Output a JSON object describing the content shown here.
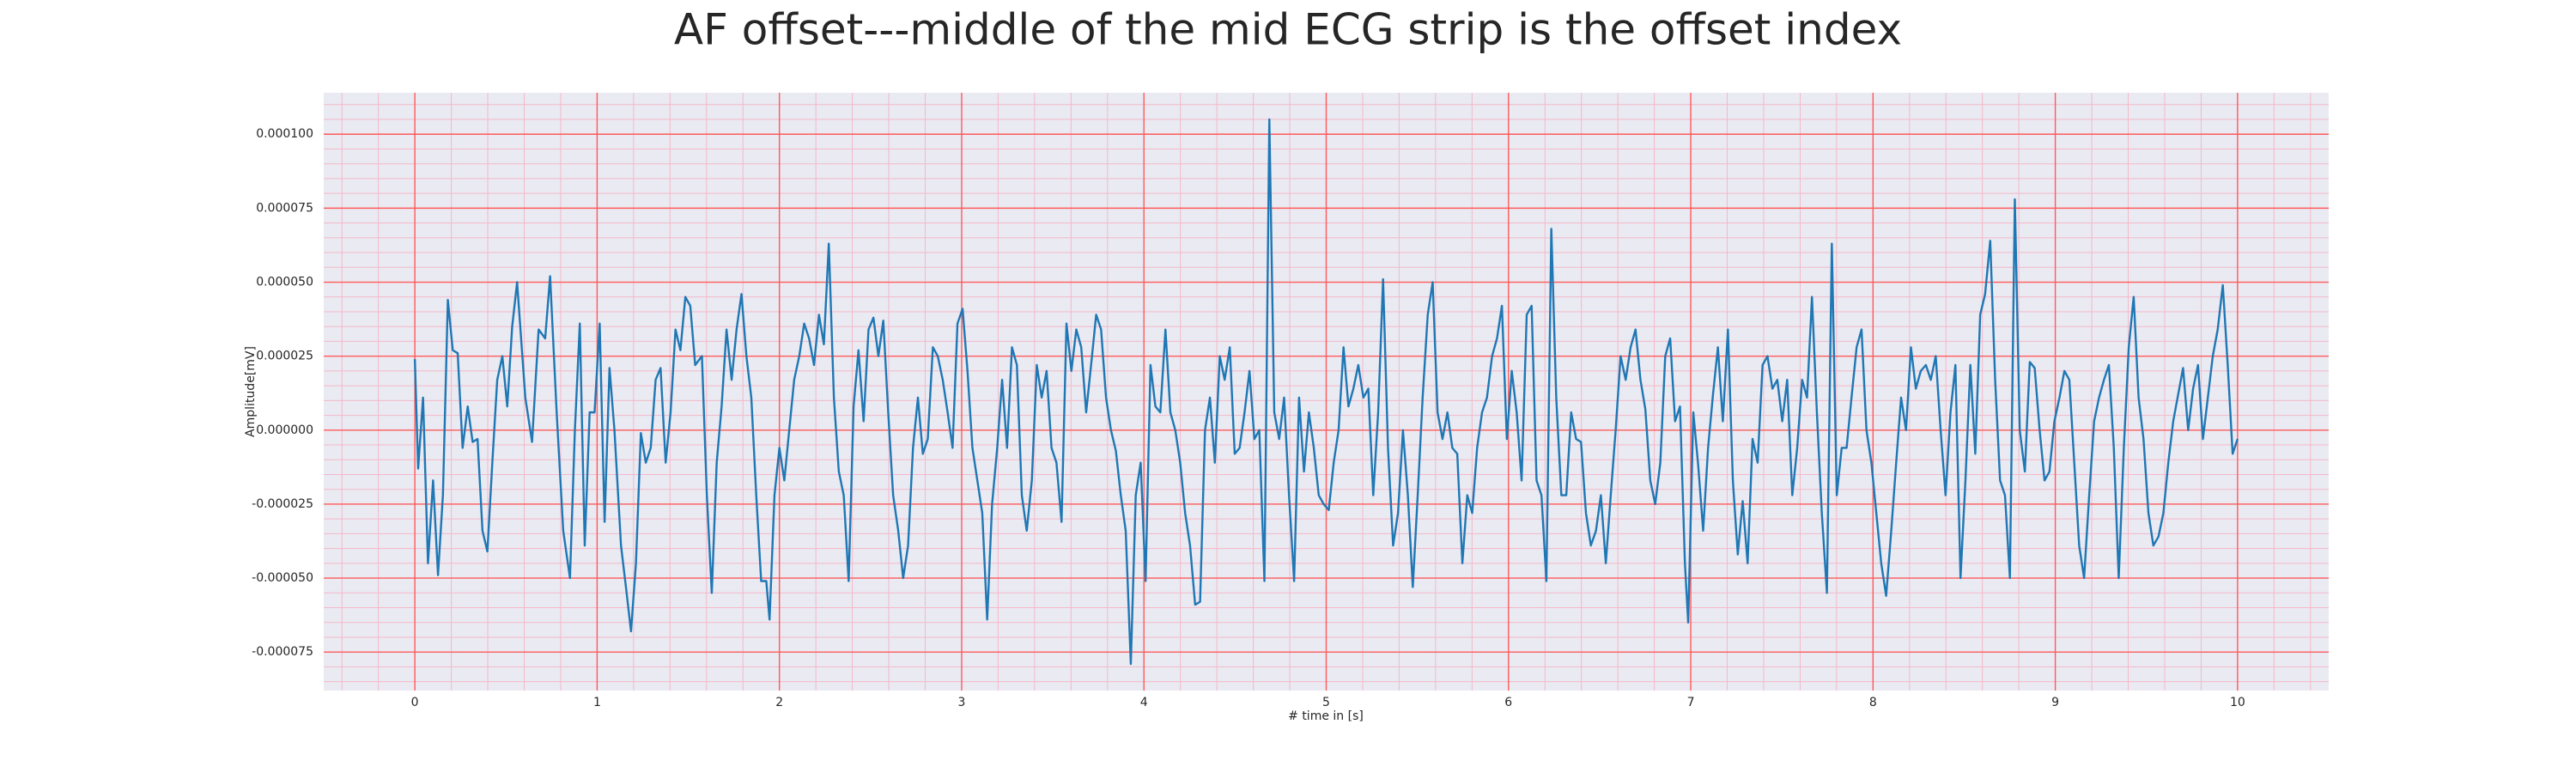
{
  "chart_data": {
    "type": "line",
    "title": "AF offset---middle of the mid ECG strip is the offset index",
    "xlabel": "# time in [s]",
    "ylabel": "Amplitude[mV]",
    "color": "#1f77b4",
    "background": "#eaeaf2",
    "grid_color": "#ff5a5a",
    "minor_grid_color": "#f4b8c8",
    "grid": true,
    "minor_grid": true,
    "xlim": [
      -0.5,
      10.5
    ],
    "ylim": [
      -8.8e-05,
      0.000114
    ],
    "xticks": [
      0,
      1,
      2,
      3,
      4,
      5,
      6,
      7,
      8,
      9,
      10
    ],
    "yticks": [
      {
        "value": -7.5e-05,
        "label": "-0.000075"
      },
      {
        "value": -5e-05,
        "label": "-0.000050"
      },
      {
        "value": -2.5e-05,
        "label": "-0.000025"
      },
      {
        "value": 0,
        "label": "0.000000"
      },
      {
        "value": 2.5e-05,
        "label": "0.000025"
      },
      {
        "value": 5e-05,
        "label": "0.000050"
      },
      {
        "value": 7.5e-05,
        "label": "0.000075"
      },
      {
        "value": 0.0001,
        "label": "0.000100"
      }
    ],
    "x": [
      0.0,
      0.018,
      0.045,
      0.072,
      0.1,
      0.127,
      0.154,
      0.181,
      0.208,
      0.235,
      0.262,
      0.29,
      0.317,
      0.344,
      0.371,
      0.398,
      0.425,
      0.452,
      0.48,
      0.507,
      0.534,
      0.561,
      0.606,
      0.643,
      0.679,
      0.715,
      0.742,
      0.778,
      0.814,
      0.851,
      0.878,
      0.905,
      0.932,
      0.959,
      0.986,
      1.014,
      1.041,
      1.068,
      1.095,
      1.131,
      1.158,
      1.186,
      1.213,
      1.24,
      1.267,
      1.294,
      1.321,
      1.348,
      1.376,
      1.403,
      1.43,
      1.457,
      1.484,
      1.511,
      1.538,
      1.575,
      1.602,
      1.629,
      1.656,
      1.683,
      1.71,
      1.738,
      1.765,
      1.792,
      1.819,
      1.846,
      1.873,
      1.9,
      1.928,
      1.946,
      1.973,
      2.0,
      2.027,
      2.054,
      2.081,
      2.109,
      2.136,
      2.163,
      2.19,
      2.217,
      2.244,
      2.271,
      2.299,
      2.326,
      2.353,
      2.38,
      2.407,
      2.434,
      2.462,
      2.489,
      2.516,
      2.543,
      2.57,
      2.597,
      2.624,
      2.652,
      2.679,
      2.706,
      2.733,
      2.76,
      2.787,
      2.814,
      2.842,
      2.869,
      2.896,
      2.923,
      2.95,
      2.977,
      3.005,
      3.032,
      3.059,
      3.086,
      3.113,
      3.14,
      3.167,
      3.195,
      3.222,
      3.249,
      3.276,
      3.303,
      3.33,
      3.357,
      3.385,
      3.412,
      3.439,
      3.466,
      3.493,
      3.52,
      3.548,
      3.575,
      3.602,
      3.629,
      3.656,
      3.683,
      3.71,
      3.738,
      3.765,
      3.792,
      3.819,
      3.846,
      3.873,
      3.9,
      3.928,
      3.955,
      3.982,
      4.009,
      4.036,
      4.063,
      4.09,
      4.118,
      4.145,
      4.172,
      4.199,
      4.226,
      4.253,
      4.281,
      4.308,
      4.335,
      4.362,
      4.389,
      4.416,
      4.443,
      4.471,
      4.498,
      4.525,
      4.552,
      4.579,
      4.606,
      4.633,
      4.661,
      4.688,
      4.715,
      4.742,
      4.769,
      4.796,
      4.824,
      4.851,
      4.878,
      4.905,
      4.932,
      4.959,
      4.986,
      5.014,
      5.041,
      5.068,
      5.095,
      5.122,
      5.149,
      5.176,
      5.204,
      5.231,
      5.258,
      5.285,
      5.312,
      5.339,
      5.367,
      5.394,
      5.421,
      5.448,
      5.475,
      5.502,
      5.529,
      5.557,
      5.584,
      5.611,
      5.638,
      5.665,
      5.692,
      5.719,
      5.747,
      5.774,
      5.801,
      5.828,
      5.855,
      5.882,
      5.91,
      5.937,
      5.964,
      5.991,
      6.018,
      6.045,
      6.072,
      6.1,
      6.127,
      6.154,
      6.181,
      6.208,
      6.235,
      6.262,
      6.29,
      6.317,
      6.344,
      6.371,
      6.398,
      6.425,
      6.452,
      6.48,
      6.507,
      6.534,
      6.561,
      6.588,
      6.615,
      6.643,
      6.67,
      6.697,
      6.724,
      6.751,
      6.778,
      6.805,
      6.833,
      6.86,
      6.887,
      6.914,
      6.941,
      6.968,
      6.986,
      7.014,
      7.041,
      7.068,
      7.095,
      7.122,
      7.149,
      7.176,
      7.204,
      7.231,
      7.258,
      7.285,
      7.312,
      7.339,
      7.367,
      7.394,
      7.421,
      7.448,
      7.475,
      7.502,
      7.529,
      7.557,
      7.584,
      7.611,
      7.638,
      7.665,
      7.692,
      7.719,
      7.747,
      7.774,
      7.801,
      7.828,
      7.855,
      7.882,
      7.91,
      7.937,
      7.964,
      7.991,
      8.018,
      8.045,
      8.072,
      8.1,
      8.127,
      8.154,
      8.181,
      8.208,
      8.235,
      8.262,
      8.29,
      8.317,
      8.344,
      8.371,
      8.398,
      8.425,
      8.452,
      8.48,
      8.507,
      8.534,
      8.561,
      8.588,
      8.615,
      8.643,
      8.67,
      8.697,
      8.724,
      8.751,
      8.778,
      8.805,
      8.833,
      8.86,
      8.887,
      8.914,
      8.941,
      8.968,
      8.995,
      9.023,
      9.05,
      9.077,
      9.104,
      9.131,
      9.158,
      9.186,
      9.213,
      9.24,
      9.267,
      9.294,
      9.321,
      9.348,
      9.376,
      9.403,
      9.43,
      9.457,
      9.484,
      9.511,
      9.538,
      9.566,
      9.593,
      9.62,
      9.647,
      9.674,
      9.701,
      9.729,
      9.756,
      9.783,
      9.81,
      9.837,
      9.864,
      9.891,
      9.919,
      9.946,
      9.973,
      10.0
    ],
    "values": [
      2.4e-05,
      -1.3e-05,
      1.1e-05,
      -4.5e-05,
      -1.7e-05,
      -4.9e-05,
      -2.2e-05,
      4.4e-05,
      2.7e-05,
      2.6e-05,
      -6e-06,
      8e-06,
      -4e-06,
      -3e-06,
      -3.4e-05,
      -4.1e-05,
      -1.1e-05,
      1.7e-05,
      2.5e-05,
      8e-06,
      3.5e-05,
      5e-05,
      1.1e-05,
      -4e-06,
      3.4e-05,
      3.1e-05,
      5.2e-05,
      6e-06,
      -3.4e-05,
      -5e-05,
      0,
      3.6e-05,
      -3.9e-05,
      6e-06,
      6e-06,
      3.6e-05,
      -3.1e-05,
      2.1e-05,
      0,
      -3.9e-05,
      -5.3e-05,
      -6.8e-05,
      -4.5e-05,
      -1e-06,
      -1.1e-05,
      -6e-06,
      1.7e-05,
      2.1e-05,
      -1.1e-05,
      6e-06,
      3.4e-05,
      2.7e-05,
      4.5e-05,
      4.2e-05,
      2.2e-05,
      2.5e-05,
      -2.2e-05,
      -5.5e-05,
      -1.1e-05,
      8e-06,
      3.4e-05,
      1.7e-05,
      3.4e-05,
      4.6e-05,
      2.5e-05,
      1.1e-05,
      -2.2e-05,
      -5.1e-05,
      -5.1e-05,
      -6.4e-05,
      -2.2e-05,
      -6e-06,
      -1.7e-05,
      0,
      1.7e-05,
      2.5e-05,
      3.6e-05,
      3.1e-05,
      2.2e-05,
      3.9e-05,
      2.9e-05,
      6.3e-05,
      1.1e-05,
      -1.4e-05,
      -2.2e-05,
      -5.1e-05,
      8e-06,
      2.7e-05,
      3e-06,
      3.4e-05,
      3.8e-05,
      2.5e-05,
      3.7e-05,
      6e-06,
      -2.2e-05,
      -3.4e-05,
      -5e-05,
      -3.9e-05,
      -6e-06,
      1.1e-05,
      -8e-06,
      -3e-06,
      2.8e-05,
      2.5e-05,
      1.7e-05,
      6e-06,
      -6e-06,
      3.6e-05,
      4.1e-05,
      2e-05,
      -6e-06,
      -1.7e-05,
      -2.8e-05,
      -6.4e-05,
      -2.5e-05,
      -6e-06,
      1.7e-05,
      -6e-06,
      2.8e-05,
      2.2e-05,
      -2.2e-05,
      -3.4e-05,
      -1.7e-05,
      2.2e-05,
      1.1e-05,
      2e-05,
      -6e-06,
      -1.1e-05,
      -3.1e-05,
      3.6e-05,
      2e-05,
      3.4e-05,
      2.8e-05,
      6e-06,
      2.2e-05,
      3.9e-05,
      3.4e-05,
      1.1e-05,
      0,
      -7e-06,
      -2.2e-05,
      -3.4e-05,
      -7.9e-05,
      -2.2e-05,
      -1.1e-05,
      -5.1e-05,
      2.2e-05,
      8e-06,
      6e-06,
      3.4e-05,
      6e-06,
      0,
      -1.1e-05,
      -2.8e-05,
      -3.9e-05,
      -5.9e-05,
      -5.8e-05,
      0,
      1.1e-05,
      -1.1e-05,
      2.5e-05,
      1.7e-05,
      2.8e-05,
      -8e-06,
      -6e-06,
      6e-06,
      2e-05,
      -3e-06,
      0,
      -5.1e-05,
      0.000105,
      6e-06,
      -3e-06,
      1.1e-05,
      -2.2e-05,
      -5.1e-05,
      1.1e-05,
      -1.4e-05,
      6e-06,
      -6e-06,
      -2.2e-05,
      -2.5e-05,
      -2.7e-05,
      -1.1e-05,
      0,
      2.8e-05,
      8e-06,
      1.4e-05,
      2.2e-05,
      1.1e-05,
      1.4e-05,
      -2.2e-05,
      6e-06,
      5.1e-05,
      -6e-06,
      -3.9e-05,
      -2.8e-05,
      0,
      -2.2e-05,
      -5.3e-05,
      -2.2e-05,
      1.1e-05,
      3.9e-05,
      5e-05,
      6e-06,
      -3e-06,
      6e-06,
      -6e-06,
      -8e-06,
      -4.5e-05,
      -2.2e-05,
      -2.8e-05,
      -6e-06,
      6e-06,
      1.1e-05,
      2.5e-05,
      3.1e-05,
      4.2e-05,
      -3e-06,
      2e-05,
      6e-06,
      -1.7e-05,
      3.9e-05,
      4.2e-05,
      -1.7e-05,
      -2.2e-05,
      -5.1e-05,
      6.8e-05,
      1.1e-05,
      -2.2e-05,
      -2.2e-05,
      6e-06,
      -3e-06,
      -4e-06,
      -2.8e-05,
      -3.9e-05,
      -3.4e-05,
      -2.2e-05,
      -4.5e-05,
      -2.2e-05,
      0,
      2.5e-05,
      1.7e-05,
      2.8e-05,
      3.4e-05,
      1.7e-05,
      7e-06,
      -1.7e-05,
      -2.5e-05,
      -1.1e-05,
      2.5e-05,
      3.1e-05,
      3e-06,
      8e-06,
      -4.5e-05,
      -6.5e-05,
      6e-06,
      -1.2e-05,
      -3.4e-05,
      -6e-06,
      1.2e-05,
      2.8e-05,
      3e-06,
      3.4e-05,
      -1.7e-05,
      -4.2e-05,
      -2.4e-05,
      -4.5e-05,
      -3e-06,
      -1.1e-05,
      2.2e-05,
      2.5e-05,
      1.4e-05,
      1.7e-05,
      3e-06,
      1.7e-05,
      -2.2e-05,
      -6e-06,
      1.7e-05,
      1.1e-05,
      4.5e-05,
      6e-06,
      -2.8e-05,
      -5.5e-05,
      6.3e-05,
      -2.2e-05,
      -6e-06,
      -6e-06,
      1.1e-05,
      2.8e-05,
      3.4e-05,
      0,
      -1.1e-05,
      -2.8e-05,
      -4.5e-05,
      -5.6e-05,
      -3.4e-05,
      -1.1e-05,
      1.1e-05,
      0,
      2.8e-05,
      1.4e-05,
      2e-05,
      2.2e-05,
      1.7e-05,
      2.5e-05,
      0,
      -2.2e-05,
      6e-06,
      2.2e-05,
      -5e-05,
      -1.7e-05,
      2.2e-05,
      -8e-06,
      3.9e-05,
      4.6e-05,
      6.4e-05,
      1.7e-05,
      -1.7e-05,
      -2.2e-05,
      -5e-05,
      7.8e-05,
      0,
      -1.4e-05,
      2.3e-05,
      2.1e-05,
      0,
      -1.7e-05,
      -1.4e-05,
      3e-06,
      1.1e-05,
      2e-05,
      1.7e-05,
      -1.1e-05,
      -3.9e-05,
      -5e-05,
      -2.2e-05,
      3e-06,
      1.1e-05,
      1.7e-05,
      2.2e-05,
      -6e-06,
      -5e-05,
      -6e-06,
      2.8e-05,
      4.5e-05,
      1.1e-05,
      -3e-06,
      -2.8e-05,
      -3.9e-05,
      -3.6e-05,
      -2.8e-05,
      -1.1e-05,
      3e-06,
      1.2e-05,
      2.1e-05,
      0,
      1.4e-05,
      2.2e-05,
      -3e-06,
      1.1e-05,
      2.5e-05,
      3.4e-05,
      4.9e-05,
      2.2e-05,
      -8e-06,
      -3e-06
    ]
  }
}
